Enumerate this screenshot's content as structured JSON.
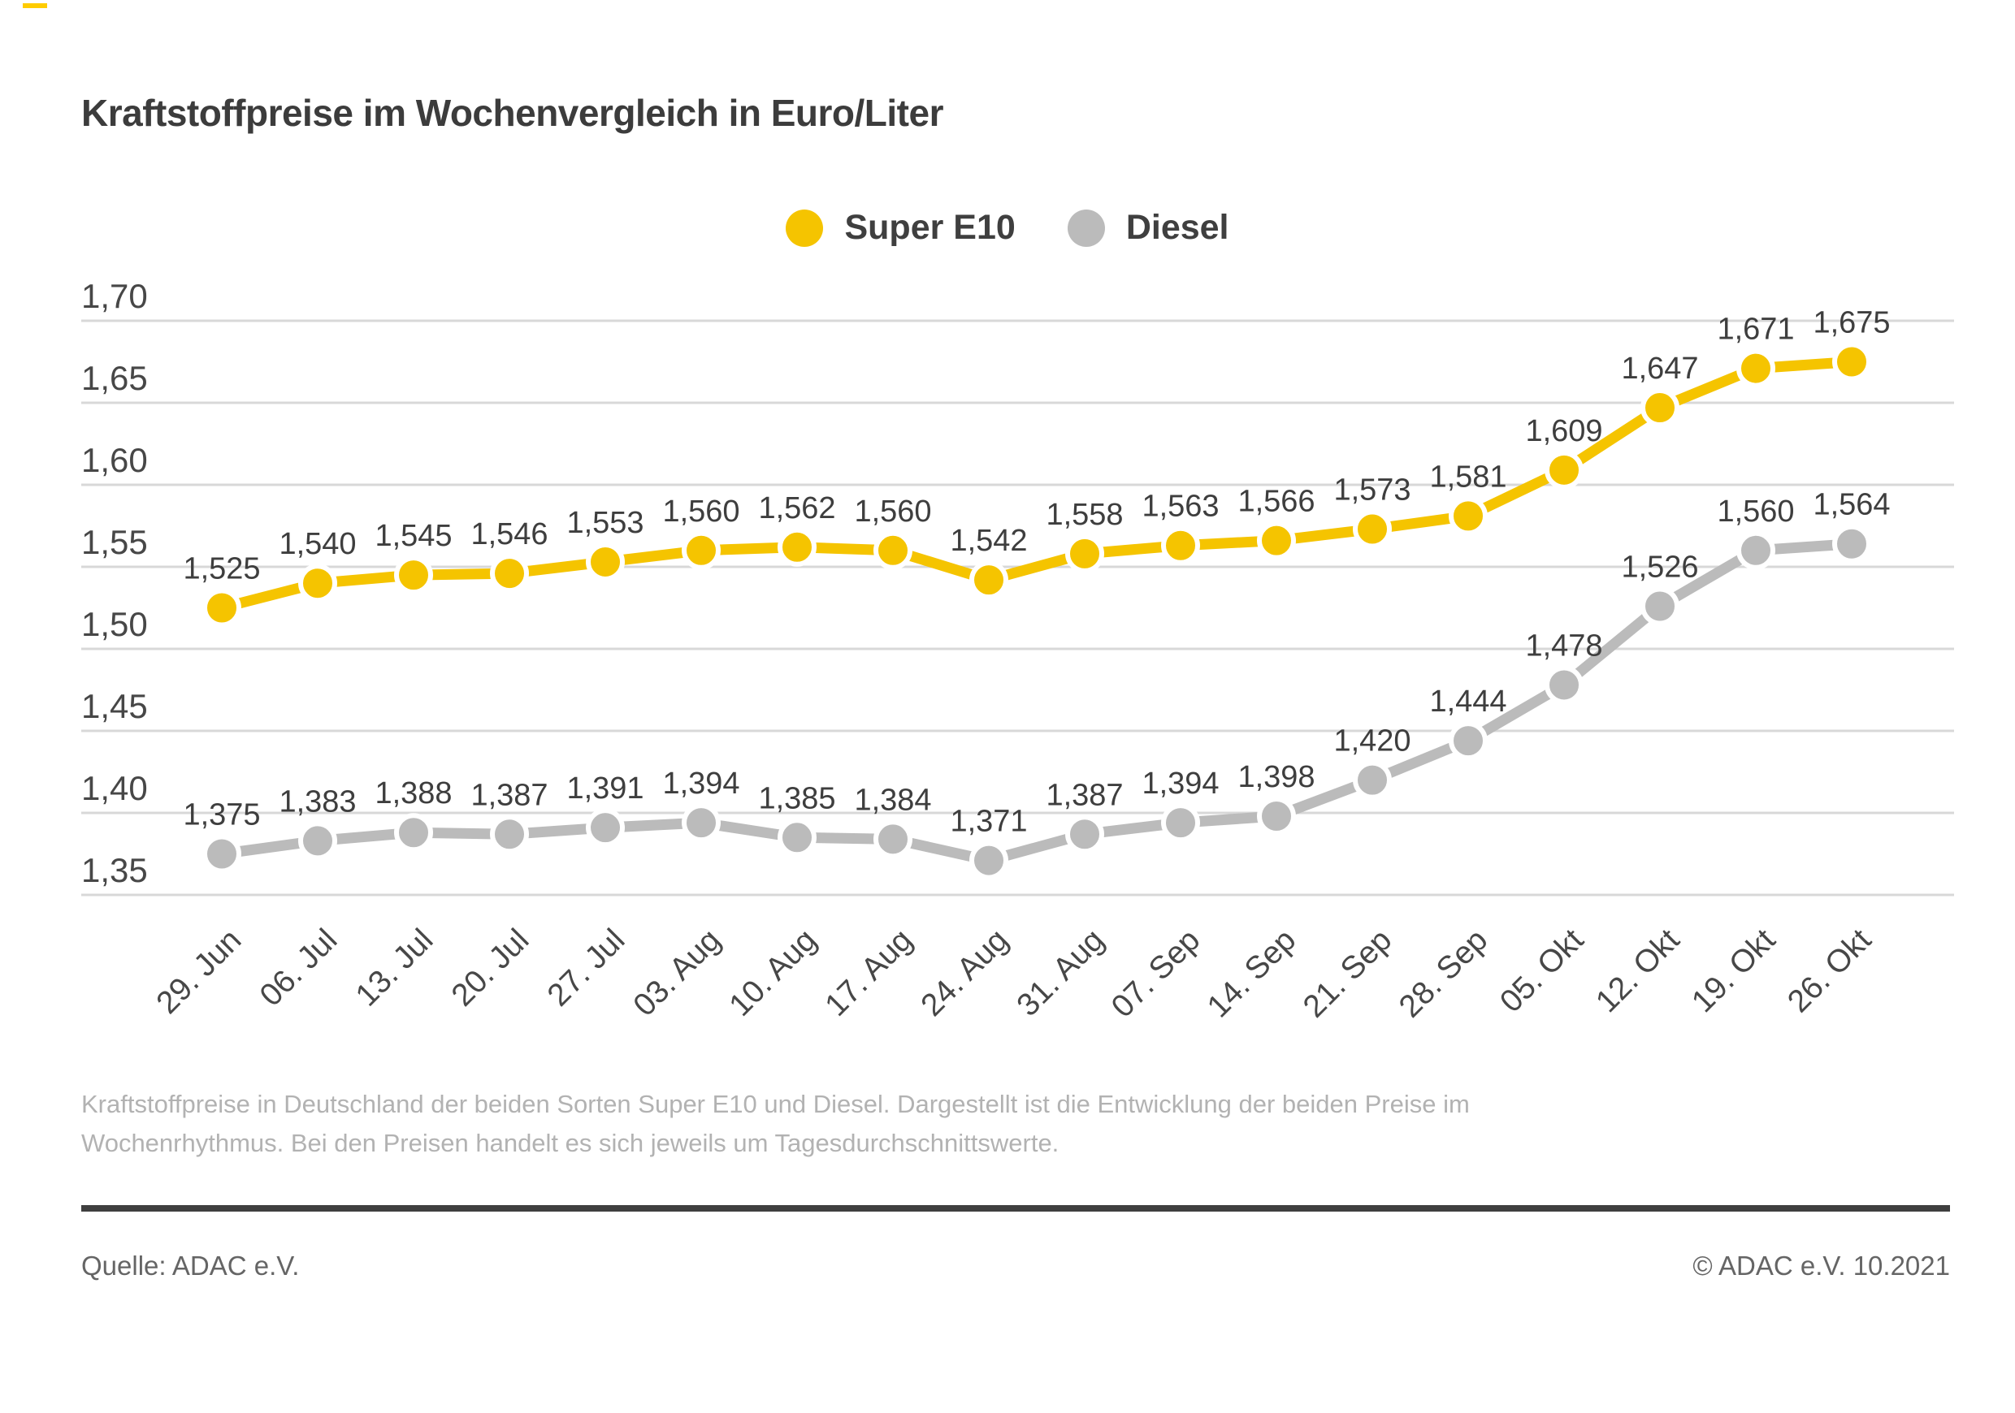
{
  "page": {
    "title": "Kraftstoffpreise im Wochenvergleich in Euro/Liter",
    "description": [
      "Kraftstoffpreise in Deutschland der beiden Sorten Super E10 und Diesel. Dargestellt ist die Entwicklung der beiden Preise im",
      "Wochenrhythmus. Bei den Preisen handelt es sich jeweils um Tagesdurchschnittswerte."
    ],
    "source_left": "Quelle: ADAC e.V.",
    "source_right": "© ADAC e.V. 10.2021",
    "accent_color": "#FFCC00"
  },
  "chart_data": {
    "type": "line",
    "title": "Kraftstoffpreise im Wochenvergleich in Euro/Liter",
    "categories": [
      "29. Jun",
      "06. Jul",
      "13. Jul",
      "20. Jul",
      "27. Jul",
      "03. Aug",
      "10. Aug",
      "17. Aug",
      "24. Aug",
      "31. Aug",
      "07. Sep",
      "14. Sep",
      "21. Sep",
      "28. Sep",
      "05. Okt",
      "12. Okt",
      "19. Okt",
      "26. Okt"
    ],
    "series": [
      {
        "name": "Super E10",
        "color": "#F5C400",
        "values": [
          1.525,
          1.54,
          1.545,
          1.546,
          1.553,
          1.56,
          1.562,
          1.56,
          1.542,
          1.558,
          1.563,
          1.566,
          1.573,
          1.581,
          1.609,
          1.647,
          1.671,
          1.675
        ]
      },
      {
        "name": "Diesel",
        "color": "#BBBBBB",
        "values": [
          1.375,
          1.383,
          1.388,
          1.387,
          1.391,
          1.394,
          1.385,
          1.384,
          1.371,
          1.387,
          1.394,
          1.398,
          1.42,
          1.444,
          1.478,
          1.526,
          1.56,
          1.564
        ]
      }
    ],
    "xlabel": "",
    "ylabel": "",
    "ylim": [
      1.35,
      1.7
    ],
    "yticks": [
      1.7,
      1.65,
      1.6,
      1.55,
      1.5,
      1.45,
      1.4,
      1.35
    ],
    "grid": true,
    "legend_position": "top-center",
    "decimal_separator": ",",
    "tick_decimals": 2,
    "value_decimals": 3
  }
}
